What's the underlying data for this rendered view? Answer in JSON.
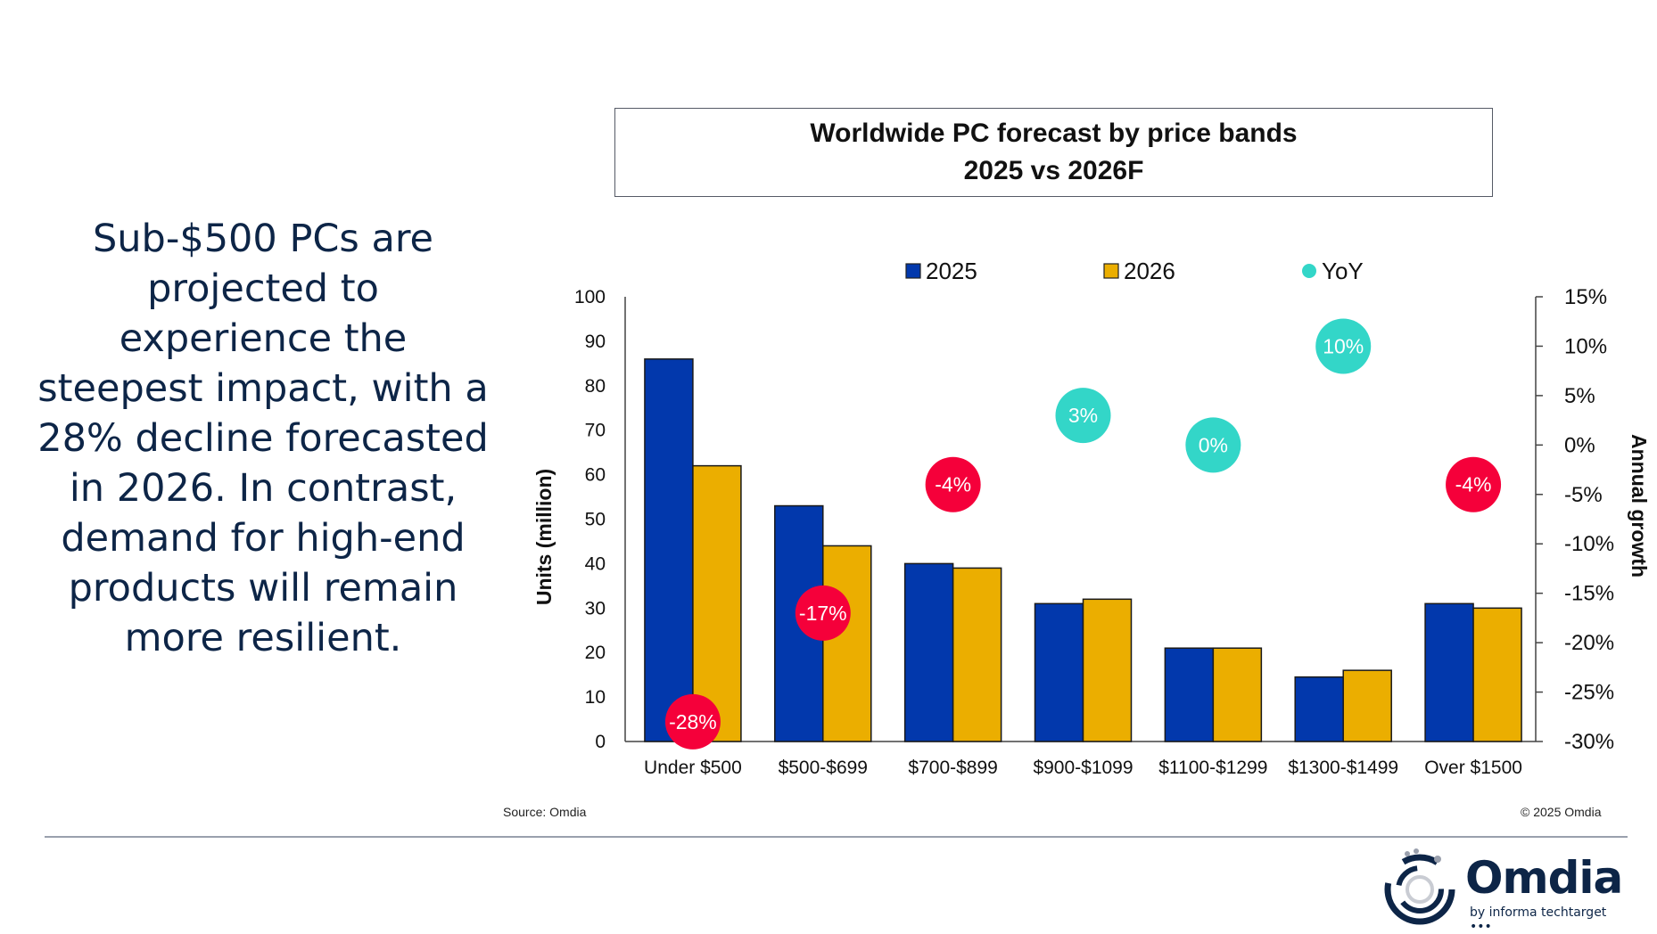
{
  "headline": "Sub-$500 PCs are projected to experience the steepest impact, with a 28% decline forecasted in 2026. In contrast, demand for high-end products will remain more resilient.",
  "headline_lines": [
    "Sub-$500 PCs are",
    "projected to",
    "experience the",
    "steepest impact, with a",
    "28% decline forecasted",
    "in 2026. In contrast,",
    "demand for high-end",
    "products will remain",
    "more resilient."
  ],
  "footer": {
    "source": "Source: Omdia",
    "copyright": "© 2025 Omdia",
    "logo_word": "Omdia",
    "logo_sub": "by informa techtarget •••"
  },
  "chart_data": {
    "type": "bar",
    "title": "Worldwide PC forecast by price bands",
    "subtitle": "2025 vs 2026F",
    "categories": [
      "Under $500",
      "$500-$699",
      "$700-$899",
      "$900-$1099",
      "$1100-$1299",
      "$1300-$1499",
      "Over $1500"
    ],
    "series": [
      {
        "name": "2025",
        "color": "#0238ac",
        "values": [
          86,
          53,
          40,
          31,
          21,
          14.5,
          31
        ]
      },
      {
        "name": "2026",
        "color": "#ebae00",
        "values": [
          62,
          44,
          39,
          32,
          21,
          16,
          30
        ]
      }
    ],
    "yoy": {
      "name": "YoY",
      "type": "scatter",
      "axis": "secondary",
      "positive_color": "#33d6c8",
      "negative_color": "#f5003a",
      "values": [
        -28,
        -17,
        -4,
        3,
        0,
        10,
        -4
      ],
      "labels": [
        "-28%",
        "-17%",
        "-4%",
        "3%",
        "0%",
        "10%",
        "-4%"
      ]
    },
    "ylabel": "Units (million)",
    "ylim": [
      0,
      100
    ],
    "yticks": [
      0,
      10,
      20,
      30,
      40,
      50,
      60,
      70,
      80,
      90,
      100
    ],
    "y2label": "Annual growth",
    "y2lim": [
      -30,
      15
    ],
    "y2ticks": [
      15,
      10,
      5,
      0,
      -5,
      -10,
      -15,
      -20,
      -25,
      -30
    ],
    "y2tick_labels": [
      "15%",
      "10%",
      "5%",
      "0%",
      "-5%",
      "-10%",
      "-15%",
      "-20%",
      "-25%",
      "-30%"
    ],
    "legend": [
      {
        "label": "2025",
        "marker": "square",
        "color": "#0238ac"
      },
      {
        "label": "2026",
        "marker": "square",
        "color": "#ebae00"
      },
      {
        "label": "YoY",
        "marker": "circle",
        "color": "#33d6c8"
      }
    ],
    "legend_position": "top",
    "grid": false
  }
}
